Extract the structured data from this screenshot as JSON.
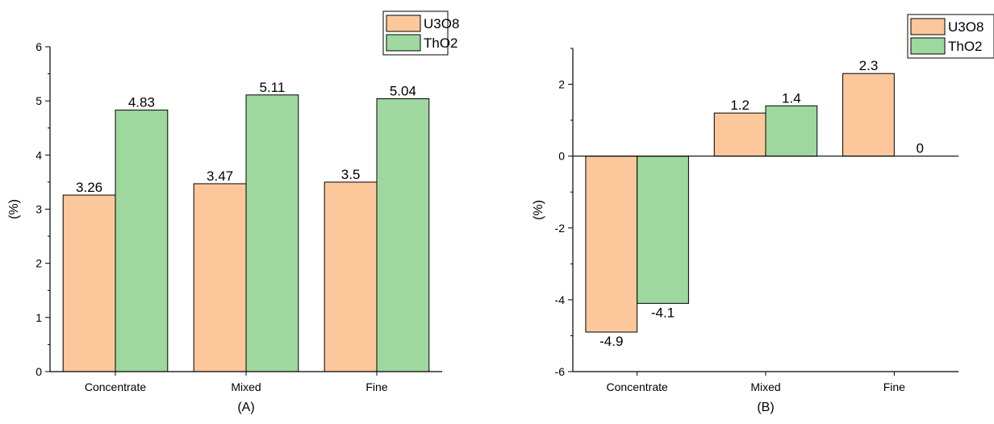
{
  "colors": {
    "U3O8": "#FCC89B",
    "ThO2": "#9ED89E",
    "axis": "#000000"
  },
  "chart_data": [
    {
      "type": "bar",
      "title": "(A)",
      "ylabel": "(%)",
      "xlabel": "",
      "categories": [
        "Concentrate",
        "Mixed",
        "Fine"
      ],
      "series": [
        {
          "name": "U3O8",
          "values": [
            3.26,
            3.47,
            3.5
          ],
          "labels": [
            "3.26",
            "3.47",
            "3.5"
          ]
        },
        {
          "name": "ThO2",
          "values": [
            4.83,
            5.11,
            5.04
          ],
          "labels": [
            "4.83",
            "5.11",
            "5.04"
          ]
        }
      ],
      "ylim": [
        0,
        6
      ],
      "yticks": [
        0,
        1,
        2,
        3,
        4,
        5,
        6
      ],
      "grid": false,
      "legend": "top-right"
    },
    {
      "type": "bar",
      "title": "(B)",
      "ylabel": "(%)",
      "xlabel": "",
      "categories": [
        "Concentrate",
        "Mixed",
        "Fine"
      ],
      "series": [
        {
          "name": "U3O8",
          "values": [
            -4.9,
            1.2,
            2.3
          ],
          "labels": [
            "-4.9",
            "1.2",
            "2.3"
          ]
        },
        {
          "name": "ThO2",
          "values": [
            -4.1,
            1.4,
            0
          ],
          "labels": [
            "-4.1",
            "1.4",
            "0"
          ]
        }
      ],
      "ylim": [
        -6,
        3
      ],
      "yticks": [
        -6,
        -4,
        -2,
        0,
        2
      ],
      "grid": false,
      "legend": "top-right"
    }
  ]
}
